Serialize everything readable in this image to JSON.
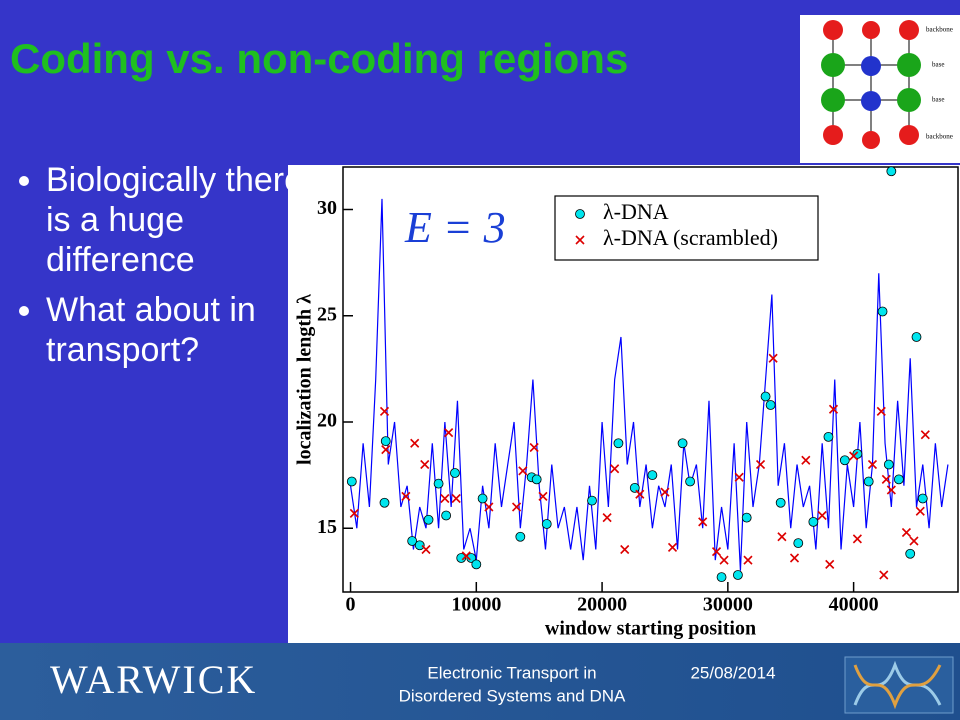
{
  "header": {
    "title": "Coding vs. non-coding regions"
  },
  "bullets": [
    "Biologically there is a huge difference",
    "What about in transport?"
  ],
  "diagram": {
    "labels": [
      "backbone",
      "base",
      "base",
      "backbone"
    ]
  },
  "footer": {
    "logo": "WARWICK",
    "subject": [
      "Electronic Transport in",
      "Disordered Systems and DNA"
    ],
    "date": "25/08/2014"
  },
  "chart_data": {
    "type": "line",
    "xlabel": "window starting position",
    "ylabel": "localization length λ",
    "annotation": "E = 3",
    "xlim": [
      -600,
      48300
    ],
    "ylim": [
      12,
      32
    ],
    "xticks": [
      0,
      10000,
      20000,
      30000,
      40000
    ],
    "yticks": [
      15,
      20,
      25,
      30
    ],
    "legend": "upper right",
    "series": [
      {
        "mode": "line",
        "color": "#0000ff",
        "x": [
          0,
          500,
          1000,
          1500,
          2000,
          2500,
          3000,
          3500,
          4000,
          4500,
          5000,
          5500,
          6000,
          6500,
          7000,
          7500,
          8000,
          8500,
          9000,
          9500,
          10000,
          10500,
          11000,
          11500,
          12000,
          12500,
          13000,
          13500,
          14000,
          14500,
          15000,
          15500,
          16000,
          16500,
          17000,
          17500,
          18000,
          18500,
          19000,
          19500,
          20000,
          20500,
          21000,
          21500,
          22000,
          22500,
          23000,
          23500,
          24000,
          24500,
          25000,
          25500,
          26000,
          26500,
          27000,
          27500,
          28000,
          28500,
          29000,
          29500,
          30000,
          30500,
          31000,
          31500,
          32000,
          32500,
          33000,
          33500,
          34000,
          34500,
          35000,
          35500,
          36000,
          36500,
          37000,
          37500,
          38000,
          38500,
          39000,
          39500,
          40000,
          40500,
          41000,
          41500,
          42000,
          42500,
          43000,
          43500,
          44000,
          44500,
          45000,
          45500,
          46000,
          46500,
          47000,
          47500
        ],
        "values": [
          17,
          15,
          19,
          16,
          22,
          30.5,
          18,
          20,
          16,
          17,
          14,
          16,
          15,
          19,
          15,
          20,
          16,
          21,
          14,
          15,
          13.5,
          17,
          15,
          19,
          16,
          18,
          20,
          15,
          18,
          22,
          17,
          14,
          18,
          15,
          16,
          14,
          16,
          13.5,
          17,
          14,
          20,
          16,
          22,
          24,
          18,
          20,
          16,
          18,
          15,
          17,
          16,
          18,
          14,
          19,
          17,
          18,
          15,
          21,
          13.5,
          16,
          14,
          19,
          13,
          20,
          16,
          18,
          22,
          26,
          17,
          19,
          15,
          18,
          16,
          17,
          14,
          19,
          15,
          22,
          14,
          18,
          16,
          20,
          15,
          18,
          27,
          19,
          16,
          21,
          17,
          23,
          16,
          18,
          15,
          19,
          16,
          18
        ]
      },
      {
        "name": "λ-DNA",
        "mode": "circle",
        "color": "#00e5ee",
        "x": [
          100,
          2800,
          2700,
          4900,
          5500,
          6200,
          7000,
          7600,
          8300,
          8800,
          9600,
          10000,
          10500,
          13500,
          14400,
          14800,
          15600,
          19200,
          21300,
          22600,
          24000,
          26400,
          27000,
          29500,
          30800,
          31500,
          33000,
          33400,
          34200,
          35600,
          36800,
          38000,
          39300,
          40300,
          41200,
          42300,
          42800,
          43000,
          43600,
          44500,
          45000,
          45500
        ],
        "values": [
          17.2,
          19.1,
          16.2,
          14.4,
          14.2,
          15.4,
          17.1,
          15.6,
          17.6,
          13.6,
          13.6,
          13.3,
          16.4,
          14.6,
          17.4,
          17.3,
          15.2,
          16.3,
          19,
          16.9,
          17.5,
          19,
          17.2,
          12.7,
          12.8,
          15.5,
          21.2,
          20.8,
          16.2,
          14.3,
          15.3,
          19.3,
          18.2,
          18.5,
          17.2,
          25.2,
          18,
          31.8,
          17.3,
          13.8,
          24,
          16.4
        ]
      },
      {
        "name": "λ-DNA (scrambled)",
        "mode": "cross",
        "color": "#dd0000",
        "x": [
          300,
          2700,
          2800,
          4400,
          5100,
          5900,
          6000,
          7500,
          7800,
          8400,
          9200,
          11000,
          13200,
          13700,
          14600,
          15300,
          20400,
          21000,
          21800,
          23000,
          25000,
          25600,
          28000,
          29100,
          29700,
          30900,
          31600,
          32600,
          33600,
          34300,
          35300,
          36200,
          37500,
          38100,
          38400,
          40000,
          40300,
          41500,
          42200,
          42400,
          42600,
          43000,
          44200,
          44800,
          45300,
          45700
        ],
        "values": [
          15.7,
          20.5,
          18.7,
          16.5,
          19,
          18,
          14,
          16.4,
          19.5,
          16.4,
          13.7,
          16,
          16,
          17.7,
          18.8,
          16.5,
          15.5,
          17.8,
          14,
          16.6,
          16.7,
          14.1,
          15.3,
          13.9,
          13.5,
          17.4,
          13.5,
          18,
          23,
          14.6,
          13.6,
          18.2,
          15.6,
          13.3,
          20.6,
          18.4,
          14.5,
          18,
          20.5,
          12.8,
          17.3,
          16.8,
          14.8,
          14.4,
          15.8,
          19.4
        ]
      }
    ]
  }
}
